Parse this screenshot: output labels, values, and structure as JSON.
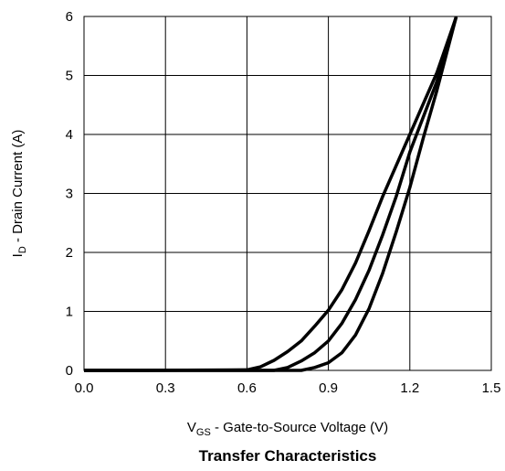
{
  "chart_data": {
    "type": "line",
    "title": "Transfer Characteristics",
    "xlabel": {
      "main": "V",
      "sub": "GS",
      "rest": " - Gate-to-Source Voltage (V)"
    },
    "ylabel": {
      "main": "I",
      "sub": "D",
      "rest": " - Drain Current (A)"
    },
    "xlim": [
      0,
      1.5
    ],
    "ylim": [
      0,
      6
    ],
    "xticks": [
      0,
      0.3,
      0.6,
      0.9,
      1.2,
      1.5
    ],
    "xtick_labels": [
      "0.0",
      "0.3",
      "0.6",
      "0.9",
      "1.2",
      "1.5"
    ],
    "yticks": [
      0,
      1,
      2,
      3,
      4,
      5,
      6
    ],
    "ytick_labels": [
      "0",
      "1",
      "2",
      "3",
      "4",
      "5",
      "6"
    ],
    "grid": true,
    "legend": "none",
    "line_color": "#000000",
    "series": [
      {
        "values": [
          [
            0.0,
            0.0
          ],
          [
            0.2,
            0.0
          ],
          [
            0.6,
            0.01
          ],
          [
            0.65,
            0.06
          ],
          [
            0.7,
            0.17
          ],
          [
            0.75,
            0.32
          ],
          [
            0.8,
            0.5
          ],
          [
            0.85,
            0.75
          ],
          [
            0.9,
            1.02
          ],
          [
            0.95,
            1.37
          ],
          [
            1.0,
            1.82
          ],
          [
            1.05,
            2.37
          ],
          [
            1.1,
            2.95
          ],
          [
            1.2,
            4.0
          ],
          [
            1.3,
            5.05
          ],
          [
            1.37,
            5.98
          ]
        ]
      },
      {
        "values": [
          [
            0.0,
            0.0
          ],
          [
            0.2,
            0.0
          ],
          [
            0.6,
            0.0
          ],
          [
            0.7,
            0.0
          ],
          [
            0.75,
            0.05
          ],
          [
            0.8,
            0.16
          ],
          [
            0.85,
            0.3
          ],
          [
            0.9,
            0.5
          ],
          [
            0.95,
            0.8
          ],
          [
            1.0,
            1.2
          ],
          [
            1.05,
            1.7
          ],
          [
            1.1,
            2.3
          ],
          [
            1.15,
            2.95
          ],
          [
            1.2,
            3.7
          ],
          [
            1.3,
            4.9
          ],
          [
            1.37,
            5.98
          ]
        ]
      },
      {
        "values": [
          [
            0.0,
            0.0
          ],
          [
            0.2,
            0.0
          ],
          [
            0.6,
            0.0
          ],
          [
            0.8,
            0.0
          ],
          [
            0.85,
            0.05
          ],
          [
            0.9,
            0.13
          ],
          [
            0.95,
            0.3
          ],
          [
            1.0,
            0.6
          ],
          [
            1.05,
            1.05
          ],
          [
            1.1,
            1.65
          ],
          [
            1.15,
            2.35
          ],
          [
            1.2,
            3.1
          ],
          [
            1.25,
            3.95
          ],
          [
            1.3,
            4.75
          ],
          [
            1.37,
            5.98
          ]
        ]
      }
    ]
  }
}
